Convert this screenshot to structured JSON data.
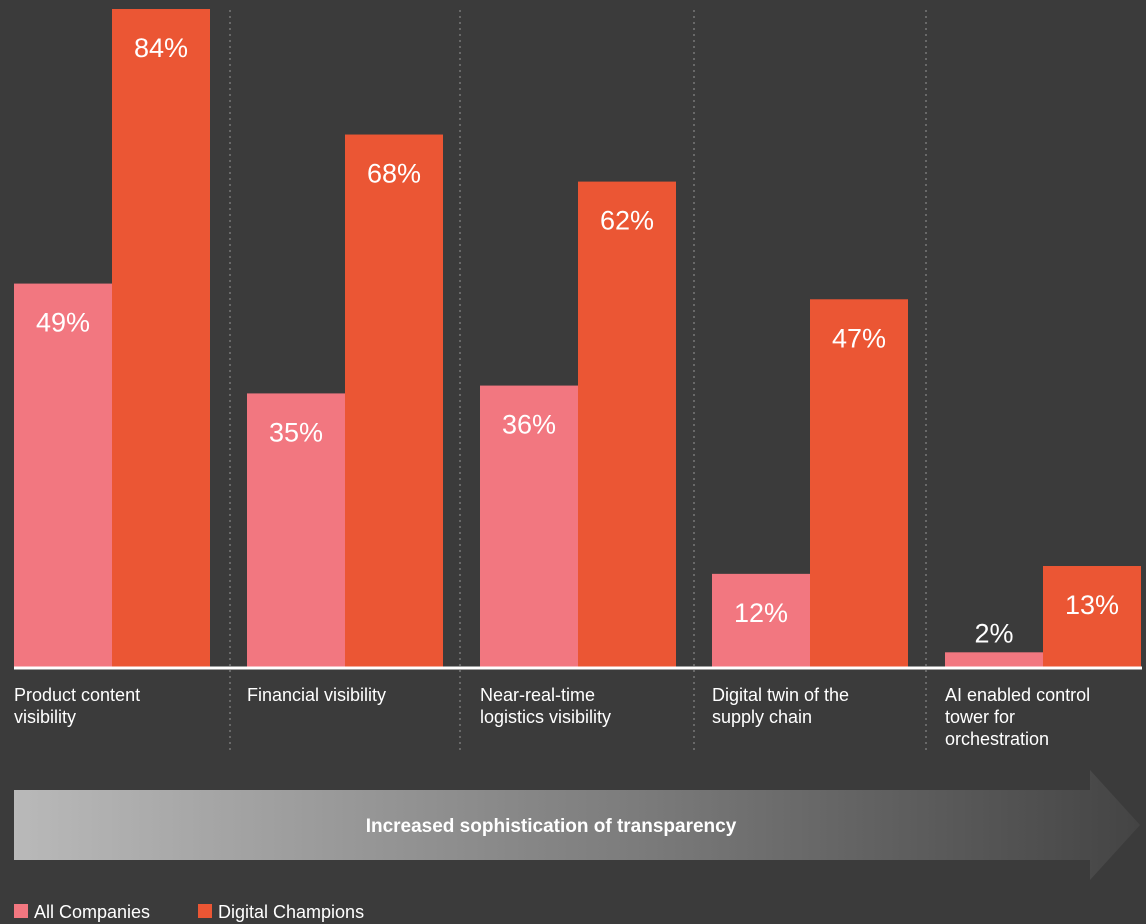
{
  "chart_data": {
    "type": "bar",
    "title": "",
    "xlabel": "",
    "ylabel": "",
    "ylim": [
      0,
      84
    ],
    "grid": false,
    "legend_position": "bottom-left",
    "categories": [
      [
        "Product content",
        "visibility"
      ],
      [
        "Financial visibility"
      ],
      [
        "Near-real-time",
        "logistics visibility"
      ],
      [
        "Digital twin of the",
        "supply chain"
      ],
      [
        "AI enabled control",
        "tower for",
        "orchestration"
      ]
    ],
    "series": [
      {
        "name": "All Companies",
        "color": "#f27780",
        "values": [
          49,
          35,
          36,
          12,
          2
        ],
        "labels": [
          "49%",
          "35%",
          "36%",
          "12%",
          "2%"
        ]
      },
      {
        "name": "Digital Champions",
        "color": "#eb5634",
        "values": [
          84,
          68,
          62,
          47,
          13
        ],
        "labels": [
          "84%",
          "68%",
          "62%",
          "47%",
          "13%"
        ]
      }
    ],
    "arrow_text": "Increased sophistication of transparency"
  },
  "colors": {
    "background": "#3b3b3b",
    "baseline": "#ffffff",
    "divider": "#777777"
  }
}
